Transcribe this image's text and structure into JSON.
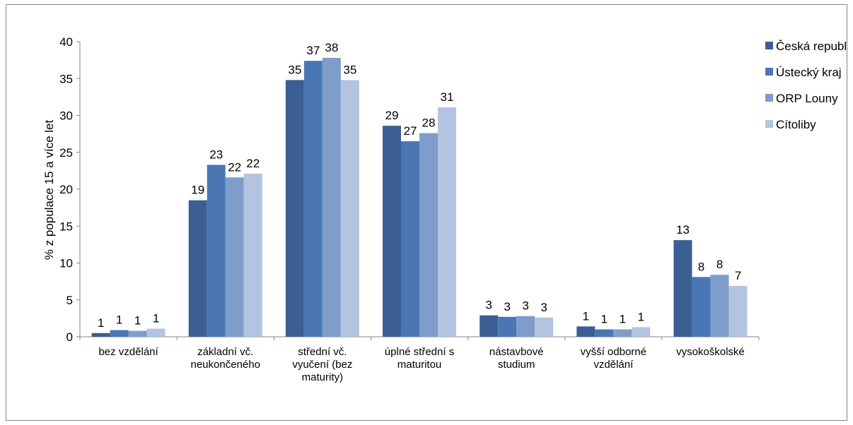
{
  "chart_data": {
    "type": "bar",
    "title": "",
    "xlabel": "",
    "ylabel": "% z populace 15 a více let",
    "ylim": [
      0,
      40
    ],
    "yticks": [
      0,
      5,
      10,
      15,
      20,
      25,
      30,
      35,
      40
    ],
    "grid": false,
    "legend_position": "right",
    "categories": [
      [
        "bez vzdělání"
      ],
      [
        "základní vč.",
        "neukončeného"
      ],
      [
        "střední vč.",
        "vyučení (bez",
        "maturity)"
      ],
      [
        "úplné střední s",
        "maturitou"
      ],
      [
        "nástavbové",
        "studium"
      ],
      [
        "vyšší odborné",
        "vzdělání"
      ],
      [
        "vysokoškolské"
      ]
    ],
    "series": [
      {
        "name": "Česká republika",
        "color": "#3c5f93",
        "values": [
          0.5,
          18.5,
          34.8,
          28.6,
          2.9,
          1.4,
          13.1
        ],
        "labels": [
          "1",
          "19",
          "35",
          "29",
          "3",
          "1",
          "13"
        ]
      },
      {
        "name": "Ústecký kraj",
        "color": "#4a77b4",
        "values": [
          0.9,
          23.3,
          37.4,
          26.5,
          2.7,
          1.0,
          8.1
        ],
        "labels": [
          "1",
          "23",
          "37",
          "27",
          "3",
          "1",
          "8"
        ]
      },
      {
        "name": "ORP Louny",
        "color": "#7e9dca",
        "values": [
          0.8,
          21.6,
          37.8,
          27.6,
          2.8,
          1.0,
          8.4
        ],
        "labels": [
          "1",
          "22",
          "38",
          "28",
          "3",
          "1",
          "8"
        ]
      },
      {
        "name": "Cítoliby",
        "color": "#b4c4e0",
        "values": [
          1.1,
          22.1,
          34.8,
          31.1,
          2.6,
          1.3,
          6.9
        ],
        "labels": [
          "1",
          "22",
          "35",
          "31",
          "3",
          "1",
          "7"
        ]
      }
    ]
  }
}
